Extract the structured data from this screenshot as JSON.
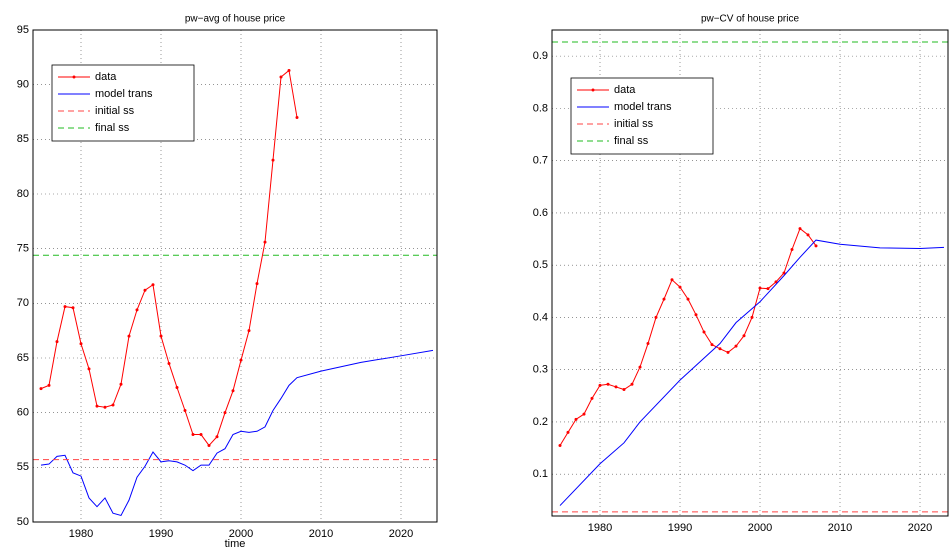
{
  "chart_data": [
    {
      "type": "line",
      "title": "pw−avg of house price",
      "x_label": "time",
      "xlim": [
        1974,
        2024.5
      ],
      "xticks": [
        1980,
        1990,
        2000,
        2010,
        2020
      ],
      "ylim": [
        50,
        95
      ],
      "yticks": [
        50,
        55,
        60,
        65,
        70,
        75,
        80,
        85,
        90,
        95
      ],
      "grid": true,
      "legend": "northwest",
      "series": [
        {
          "name": "data",
          "color": "#ff0000",
          "marker": true,
          "x": [
            1975,
            1976,
            1977,
            1978,
            1979,
            1980,
            1981,
            1982,
            1983,
            1984,
            1985,
            1986,
            1987,
            1988,
            1989,
            1990,
            1991,
            1992,
            1993,
            1994,
            1995,
            1996,
            1997,
            1998,
            1999,
            2000,
            2001,
            2002,
            2003,
            2004,
            2005,
            2006,
            2007
          ],
          "values": [
            62.2,
            62.5,
            66.5,
            69.7,
            69.6,
            66.3,
            64,
            60.6,
            60.5,
            60.7,
            62.6,
            67,
            69.4,
            71.2,
            71.7,
            67,
            64.5,
            62.3,
            60.2,
            58,
            58,
            57,
            57.8,
            60,
            62,
            64.8,
            67.5,
            71.8,
            75.6,
            83.1,
            90.7,
            91.3,
            87
          ]
        },
        {
          "name": "model trans",
          "color": "#0000ff",
          "x": [
            1975,
            1976,
            1977,
            1978,
            1979,
            1980,
            1981,
            1982,
            1983,
            1984,
            1985,
            1986,
            1987,
            1988,
            1989,
            1990,
            1991,
            1992,
            1993,
            1994,
            1995,
            1996,
            1997,
            1998,
            1999,
            2000,
            2001,
            2002,
            2003,
            2004,
            2005,
            2006,
            2007,
            2010,
            2015,
            2020,
            2024
          ],
          "values": [
            55.2,
            55.3,
            56,
            56.1,
            54.5,
            54.2,
            52.2,
            51.4,
            52.2,
            50.8,
            50.6,
            52,
            54.1,
            55.1,
            56.4,
            55.5,
            55.6,
            55.5,
            55.2,
            54.7,
            55.2,
            55.2,
            56.3,
            56.7,
            58,
            58.3,
            58.2,
            58.3,
            58.7,
            60.2,
            61.3,
            62.5,
            63.2,
            63.8,
            64.6,
            65.2,
            65.7
          ]
        },
        {
          "name": "initial ss",
          "color": "#ff4444",
          "dashed": true,
          "hline": 55.7
        },
        {
          "name": "final ss",
          "color": "#22bb22",
          "dashed": true,
          "hline": 74.4
        }
      ]
    },
    {
      "type": "line",
      "title": "pw−CV of house price",
      "xlim": [
        1974,
        2023.5
      ],
      "xticks": [
        1980,
        1990,
        2000,
        2010,
        2020
      ],
      "ylim": [
        0.02,
        0.95
      ],
      "yticks": [
        0.1,
        0.2,
        0.3,
        0.4,
        0.5,
        0.6,
        0.7,
        0.8,
        0.9
      ],
      "grid": true,
      "legend": "northwest",
      "series": [
        {
          "name": "data",
          "color": "#ff0000",
          "marker": true,
          "x": [
            1975,
            1976,
            1977,
            1978,
            1979,
            1980,
            1981,
            1982,
            1983,
            1984,
            1985,
            1986,
            1987,
            1988,
            1989,
            1990,
            1991,
            1992,
            1993,
            1994,
            1995,
            1996,
            1997,
            1998,
            1999,
            2000,
            2001,
            2002,
            2003,
            2004,
            2005,
            2006,
            2007
          ],
          "values": [
            0.155,
            0.18,
            0.205,
            0.215,
            0.245,
            0.27,
            0.272,
            0.267,
            0.262,
            0.272,
            0.305,
            0.35,
            0.4,
            0.435,
            0.472,
            0.458,
            0.435,
            0.405,
            0.372,
            0.348,
            0.34,
            0.333,
            0.345,
            0.365,
            0.4,
            0.456,
            0.455,
            0.468,
            0.485,
            0.53,
            0.57,
            0.558,
            0.537
          ]
        },
        {
          "name": "model trans",
          "color": "#0000ff",
          "x": [
            1975,
            1980,
            1983,
            1985,
            1990,
            1995,
            1997,
            2000,
            2003,
            2005,
            2007,
            2010,
            2015,
            2020,
            2023
          ],
          "values": [
            0.04,
            0.12,
            0.16,
            0.2,
            0.28,
            0.35,
            0.39,
            0.43,
            0.48,
            0.515,
            0.548,
            0.54,
            0.533,
            0.532,
            0.534
          ]
        },
        {
          "name": "initial ss",
          "color": "#ff4444",
          "dashed": true,
          "hline": 0.028
        },
        {
          "name": "final ss",
          "color": "#22bb22",
          "dashed": true,
          "hline": 0.927
        }
      ]
    }
  ]
}
